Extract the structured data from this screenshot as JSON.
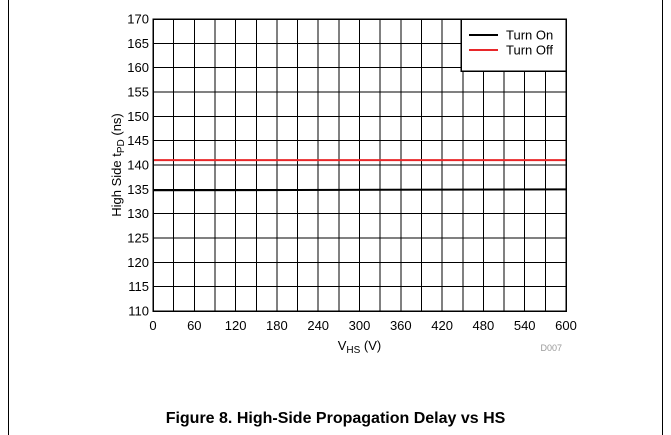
{
  "chart_data": {
    "type": "line",
    "xlabel_main": "V",
    "xlabel_sub": "HS",
    "xlabel_unit": " (V)",
    "ylabel_main": "High Side t",
    "ylabel_sub": "PD",
    "ylabel_unit": " (ns)",
    "xlim": [
      0,
      600
    ],
    "ylim": [
      110,
      170
    ],
    "x_ticks": [
      0,
      60,
      120,
      180,
      240,
      300,
      360,
      420,
      480,
      540,
      600
    ],
    "y_ticks": [
      110,
      115,
      120,
      125,
      130,
      135,
      140,
      145,
      150,
      155,
      160,
      165,
      170
    ],
    "x_grid_step": 30,
    "y_grid_step": 5,
    "grid": true,
    "legend_position": "top-right",
    "series": [
      {
        "name": "Turn On",
        "color": "#000000",
        "x": [
          0,
          600
        ],
        "y": [
          134.8,
          135.0
        ]
      },
      {
        "name": "Turn Off",
        "color": "#e8272a",
        "x": [
          0,
          600
        ],
        "y": [
          141.0,
          141.0
        ]
      }
    ],
    "annotation": "D007"
  },
  "caption": "Figure 8. High-Side Propagation Delay vs HS"
}
